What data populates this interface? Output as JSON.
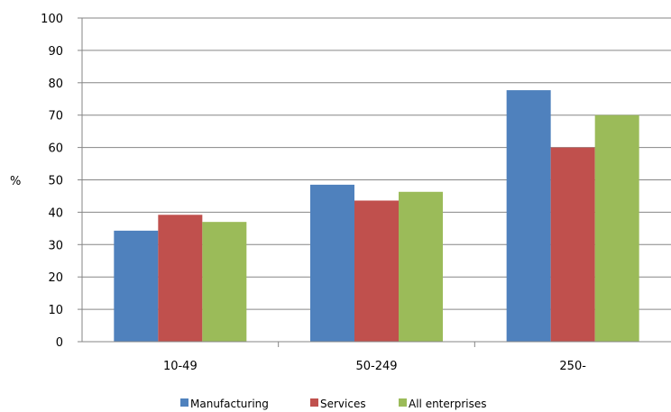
{
  "chart_data": {
    "type": "bar",
    "title": "",
    "xlabel": "",
    "ylabel": "%",
    "ylim": [
      0,
      100
    ],
    "yticks": [
      0,
      10,
      20,
      30,
      40,
      50,
      60,
      70,
      80,
      90,
      100
    ],
    "categories": [
      "10-49",
      "50-249",
      "250-"
    ],
    "series": [
      {
        "name": "Manufacturing",
        "values": [
          34.3,
          48.5,
          77.7
        ],
        "color": "#4f81bd"
      },
      {
        "name": "Services",
        "values": [
          39.2,
          43.6,
          60.0
        ],
        "color": "#c0504d"
      },
      {
        "name": "All enterprises",
        "values": [
          37.0,
          46.3,
          70.0
        ],
        "color": "#9bbb59"
      }
    ],
    "grid": true,
    "legend_position": "bottom"
  }
}
